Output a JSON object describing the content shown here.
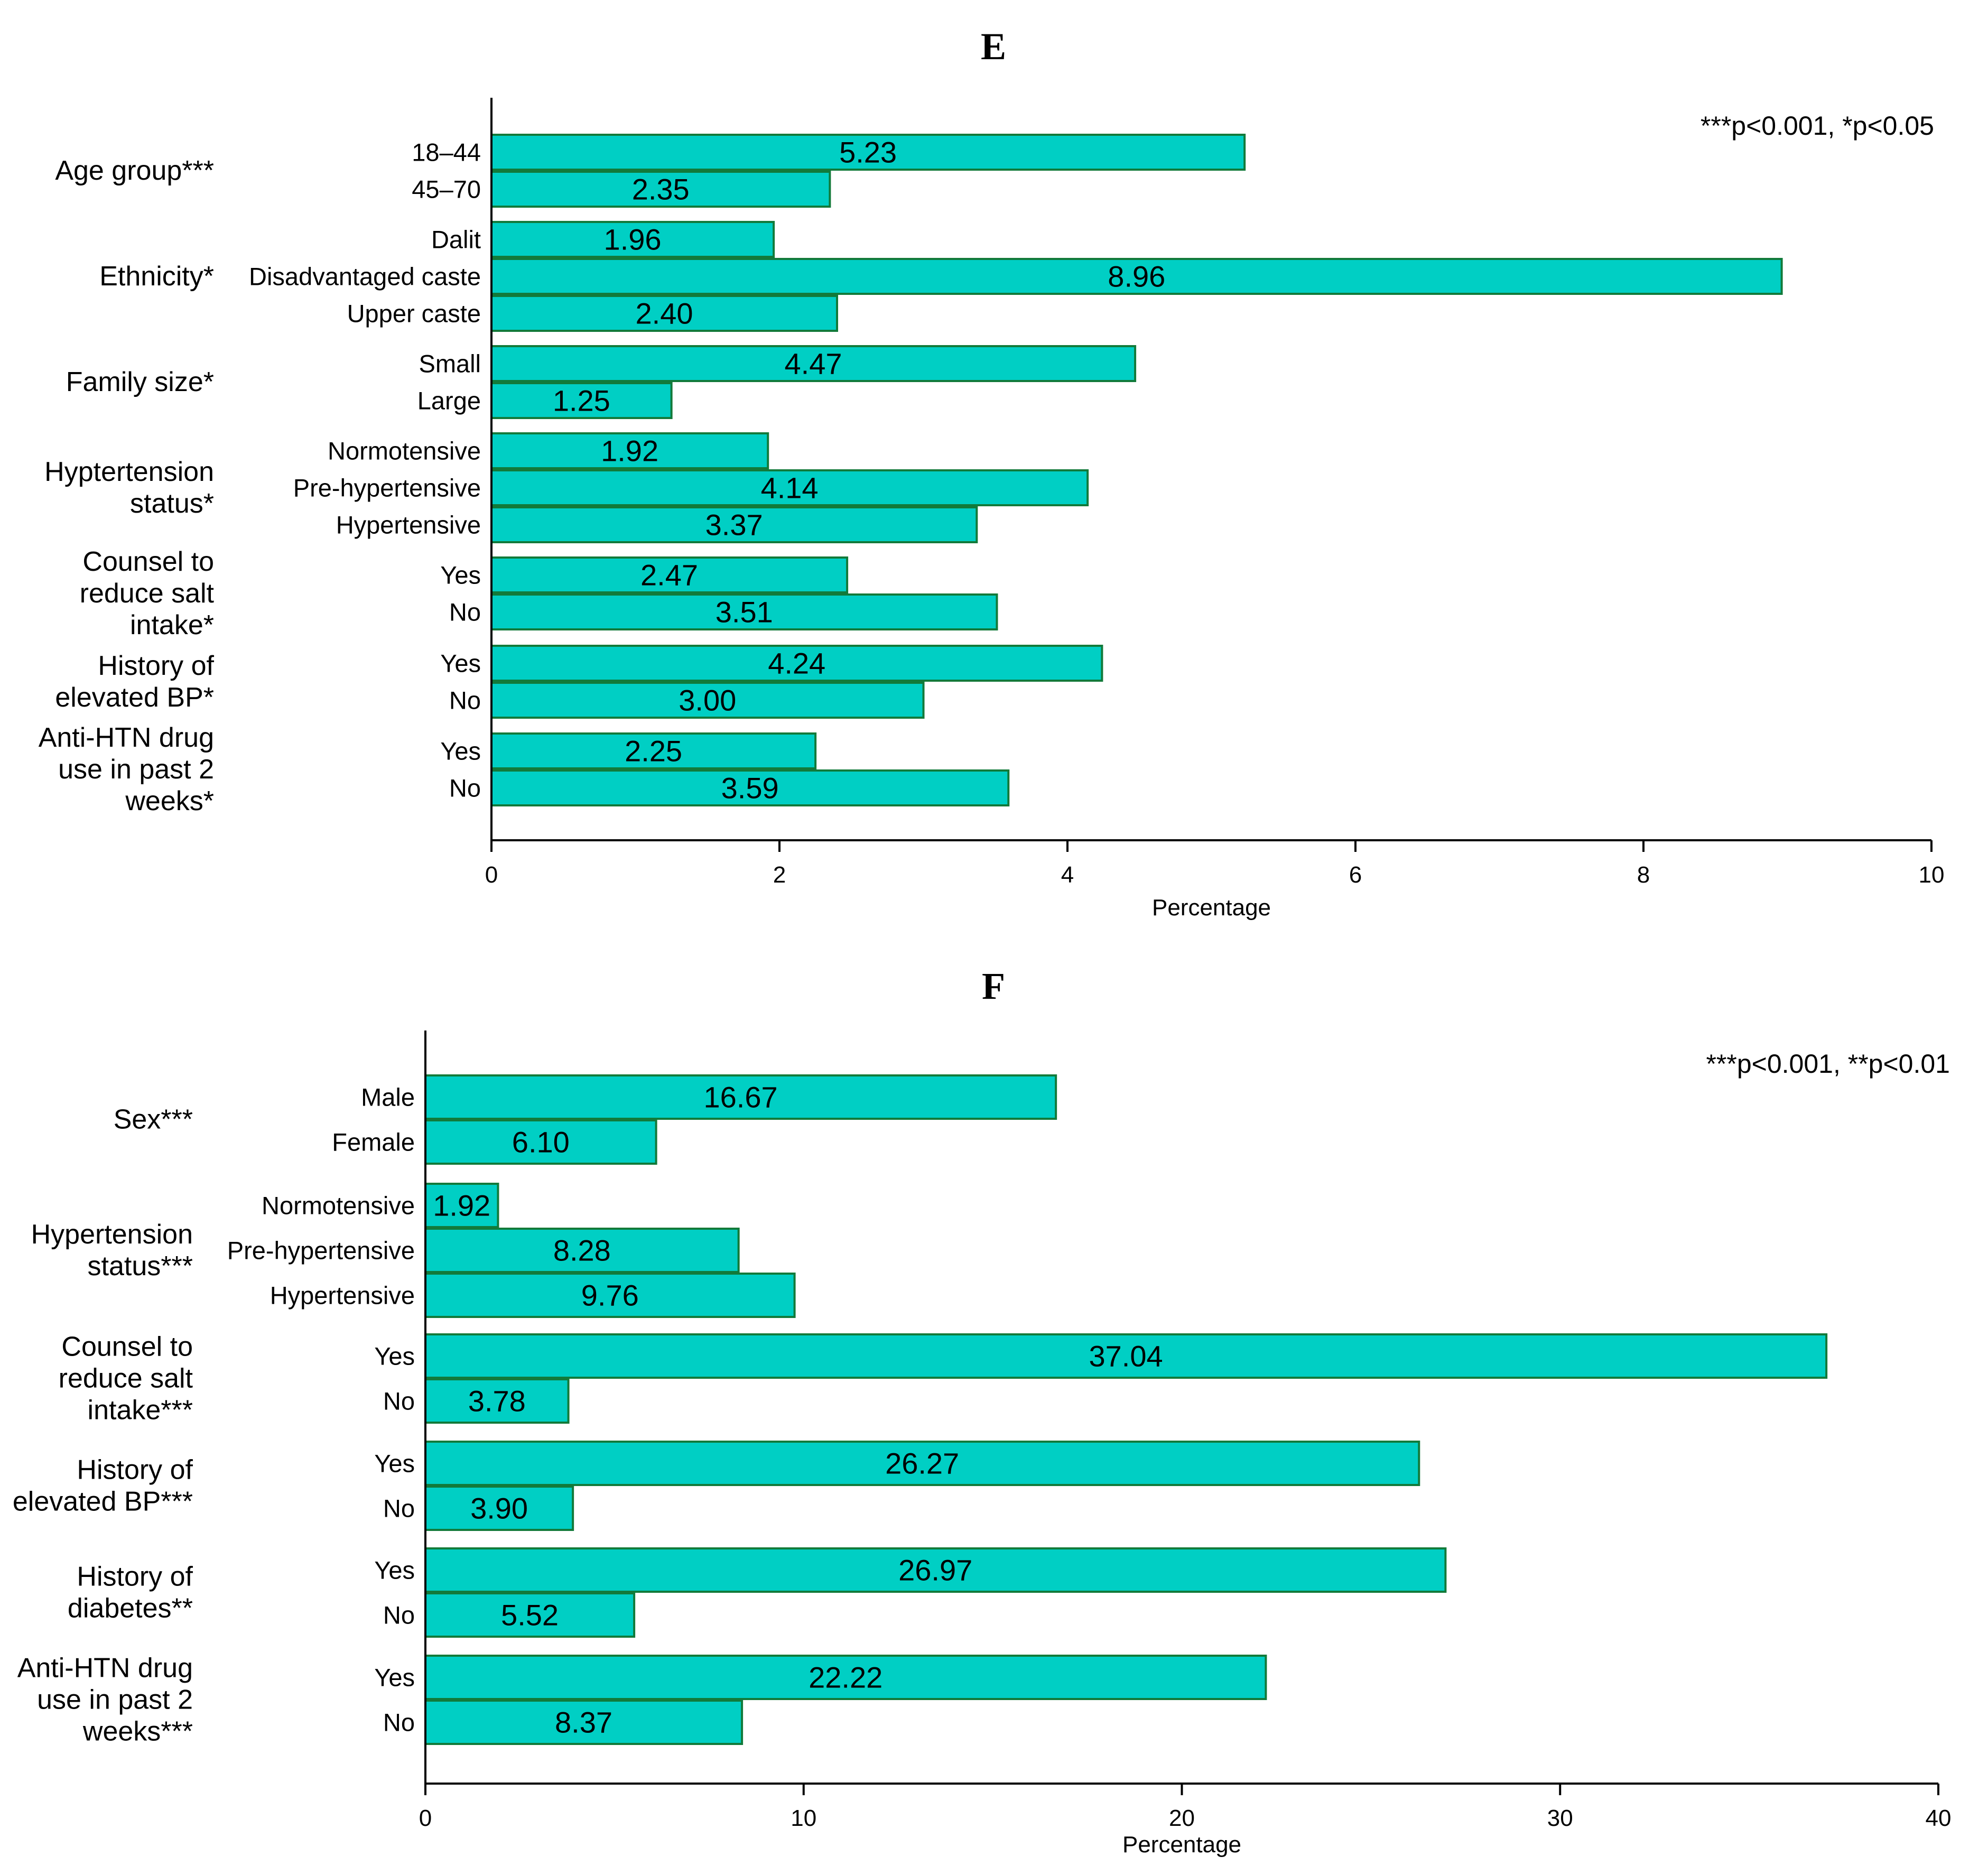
{
  "chart_data": [
    {
      "panel": "E",
      "type": "bar",
      "orientation": "horizontal",
      "title": "E",
      "xlabel": "Percentage",
      "xlim": [
        0,
        10
      ],
      "xticks": [
        0,
        2,
        4,
        6,
        8,
        10
      ],
      "note": "***p<0.001, *p<0.05",
      "bar_color": "#00cfc4",
      "edge_color": "#127a3a",
      "groups": [
        {
          "label": "Age group***",
          "bars": [
            {
              "label": "18–44",
              "value": 5.23,
              "value_label": "5.23"
            },
            {
              "label": "45–70",
              "value": 2.35,
              "value_label": "2.35"
            }
          ]
        },
        {
          "label": "Ethnicity*",
          "bars": [
            {
              "label": "Dalit",
              "value": 1.96,
              "value_label": "1.96"
            },
            {
              "label": "Disadvantaged caste",
              "value": 8.96,
              "value_label": "8.96"
            },
            {
              "label": "Upper caste",
              "value": 2.4,
              "value_label": "2.40"
            }
          ]
        },
        {
          "label": "Family size*",
          "bars": [
            {
              "label": "Small",
              "value": 4.47,
              "value_label": "4.47"
            },
            {
              "label": "Large",
              "value": 1.25,
              "value_label": "1.25"
            }
          ]
        },
        {
          "label": "Hyptertension status*",
          "bars": [
            {
              "label": "Normotensive",
              "value": 1.92,
              "value_label": "1.92"
            },
            {
              "label": "Pre-hypertensive",
              "value": 4.14,
              "value_label": "4.14"
            },
            {
              "label": "Hypertensive",
              "value": 3.37,
              "value_label": "3.37"
            }
          ]
        },
        {
          "label": "Counsel to reduce salt intake*",
          "bars": [
            {
              "label": "Yes",
              "value": 2.47,
              "value_label": "2.47"
            },
            {
              "label": "No",
              "value": 3.51,
              "value_label": "3.51"
            }
          ]
        },
        {
          "label": "History of elevated BP*",
          "bars": [
            {
              "label": "Yes",
              "value": 4.24,
              "value_label": "4.24"
            },
            {
              "label": "No",
              "value": 3.0,
              "value_label": "3.00"
            }
          ]
        },
        {
          "label": "Anti-HTN drug use in past 2 weeks*",
          "bars": [
            {
              "label": "Yes",
              "value": 2.25,
              "value_label": "2.25"
            },
            {
              "label": "No",
              "value": 3.59,
              "value_label": "3.59"
            }
          ]
        }
      ]
    },
    {
      "panel": "F",
      "type": "bar",
      "orientation": "horizontal",
      "title": "F",
      "xlabel": "Percentage",
      "xlim": [
        0,
        40
      ],
      "xticks": [
        0,
        10,
        20,
        30,
        40
      ],
      "note": "***p<0.001, **p<0.01",
      "bar_color": "#00cfc4",
      "edge_color": "#127a3a",
      "groups": [
        {
          "label": "Sex***",
          "bars": [
            {
              "label": "Male",
              "value": 16.67,
              "value_label": "16.67"
            },
            {
              "label": "Female",
              "value": 6.1,
              "value_label": "6.10"
            }
          ]
        },
        {
          "label": "Hypertension status***",
          "bars": [
            {
              "label": "Normotensive",
              "value": 1.92,
              "value_label": "1.92"
            },
            {
              "label": "Pre-hypertensive",
              "value": 8.28,
              "value_label": "8.28"
            },
            {
              "label": "Hypertensive",
              "value": 9.76,
              "value_label": "9.76"
            }
          ]
        },
        {
          "label": "Counsel to reduce salt intake***",
          "bars": [
            {
              "label": "Yes",
              "value": 37.04,
              "value_label": "37.04"
            },
            {
              "label": "No",
              "value": 3.78,
              "value_label": "3.78"
            }
          ]
        },
        {
          "label": "History of elevated BP***",
          "bars": [
            {
              "label": "Yes",
              "value": 26.27,
              "value_label": "26.27"
            },
            {
              "label": "No",
              "value": 3.9,
              "value_label": "3.90"
            }
          ]
        },
        {
          "label": "History of diabetes**",
          "bars": [
            {
              "label": "Yes",
              "value": 26.97,
              "value_label": "26.97"
            },
            {
              "label": "No",
              "value": 5.52,
              "value_label": "5.52"
            }
          ]
        },
        {
          "label": "Anti-HTN drug use in past 2 weeks***",
          "bars": [
            {
              "label": "Yes",
              "value": 22.22,
              "value_label": "22.22"
            },
            {
              "label": "No",
              "value": 8.37,
              "value_label": "8.37"
            }
          ]
        }
      ]
    }
  ]
}
